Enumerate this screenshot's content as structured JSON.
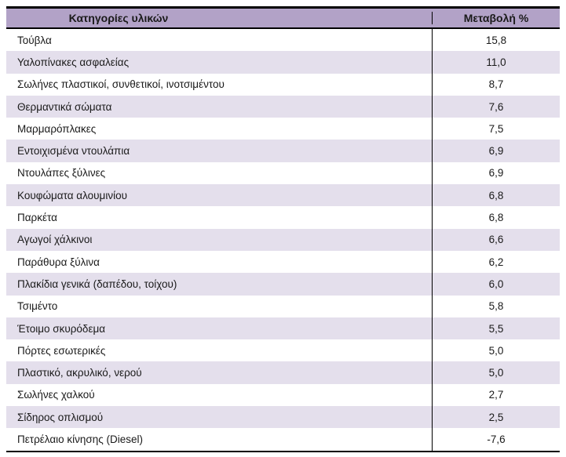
{
  "table": {
    "columns": [
      {
        "label": "Κατηγορίες υλικών"
      },
      {
        "label": "Μεταβολή %"
      }
    ],
    "rows": [
      {
        "category": "Τούβλα",
        "value": "15,8"
      },
      {
        "category": "Υαλοπίνακες ασφαλείας",
        "value": "11,0"
      },
      {
        "category": "Σωλήνες πλαστικοί, συνθετικοί, ινοτσιμέντου",
        "value": "8,7"
      },
      {
        "category": "Θερμαντικά σώματα",
        "value": "7,6"
      },
      {
        "category": "Μαρμαρόπλακες",
        "value": "7,5"
      },
      {
        "category": "Εντοιχισμένα ντουλάπια",
        "value": "6,9"
      },
      {
        "category": "Ντουλάπες ξύλινες",
        "value": "6,9"
      },
      {
        "category": "Κουφώματα αλουμινίου",
        "value": "6,8"
      },
      {
        "category": "Παρκέτα",
        "value": "6,8"
      },
      {
        "category": "Αγωγοί χάλκινοι",
        "value": "6,6"
      },
      {
        "category": "Παράθυρα ξύλινα",
        "value": "6,2"
      },
      {
        "category": "Πλακίδια γενικά (δαπέδου, τοίχου)",
        "value": "6,0"
      },
      {
        "category": "Τσιμέντο",
        "value": "5,8"
      },
      {
        "category": "Έτοιμο σκυρόδεμα",
        "value": "5,5"
      },
      {
        "category": "Πόρτες εσωτερικές",
        "value": "5,0"
      },
      {
        "category": "Πλαστικό, ακρυλικό, νερού",
        "value": "5,0"
      },
      {
        "category": "Σωλήνες χαλκού",
        "value": "2,7"
      },
      {
        "category": "Σίδηρος οπλισμού",
        "value": "2,5"
      },
      {
        "category": "Πετρέλαιο κίνησης (Diesel)",
        "value": "-7,6"
      }
    ]
  },
  "colors": {
    "header_bg": "#b2a2c7",
    "row_alt_bg": "#e4dfec",
    "border": "#000000",
    "text": "#1a1a1a"
  },
  "chart_data": {
    "type": "table",
    "columns": [
      "Κατηγορίες υλικών",
      "Μεταβολή %"
    ],
    "rows": [
      [
        "Τούβλα",
        15.8
      ],
      [
        "Υαλοπίνακες ασφαλείας",
        11.0
      ],
      [
        "Σωλήνες πλαστικοί, συνθετικοί, ινοτσιμέντου",
        8.7
      ],
      [
        "Θερμαντικά σώματα",
        7.6
      ],
      [
        "Μαρμαρόπλακες",
        7.5
      ],
      [
        "Εντοιχισμένα ντουλάπια",
        6.9
      ],
      [
        "Ντουλάπες ξύλινες",
        6.9
      ],
      [
        "Κουφώματα αλουμινίου",
        6.8
      ],
      [
        "Παρκέτα",
        6.8
      ],
      [
        "Αγωγοί χάλκινοι",
        6.6
      ],
      [
        "Παράθυρα ξύλινα",
        6.2
      ],
      [
        "Πλακίδια γενικά (δαπέδου, τοίχου)",
        6.0
      ],
      [
        "Τσιμέντο",
        5.8
      ],
      [
        "Έτοιμο σκυρόδεμα",
        5.5
      ],
      [
        "Πόρτες εσωτερικές",
        5.0
      ],
      [
        "Πλαστικό, ακρυλικό, νερού",
        5.0
      ],
      [
        "Σωλήνες χαλκού",
        2.7
      ],
      [
        "Σίδηρος οπλισμού",
        2.5
      ],
      [
        "Πετρέλαιο κίνησης (Diesel)",
        -7.6
      ]
    ]
  }
}
